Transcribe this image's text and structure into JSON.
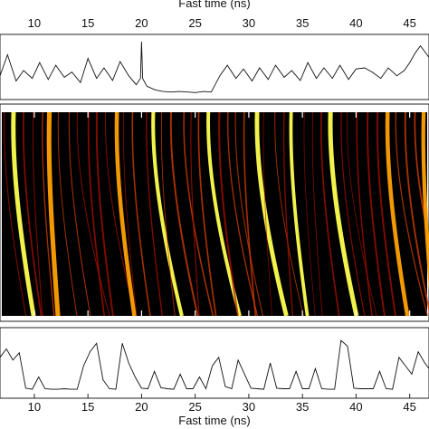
{
  "chart_data": [
    {
      "type": "line",
      "xlabel": "Fast time (ns)",
      "xticks": [
        10,
        15,
        20,
        25,
        30,
        35,
        40,
        45
      ],
      "xlim": [
        6.8,
        46.8
      ],
      "series": [
        {
          "x": [
            6.8,
            7.5,
            8.3,
            9.0,
            9.8,
            10.5,
            11.3,
            12.0,
            12.8,
            13.5,
            14.3,
            15.0,
            15.8,
            16.5,
            17.3,
            18.0,
            18.8,
            19.5,
            19.9,
            20.0,
            20.1,
            20.5,
            21.3,
            22.0,
            22.8,
            23.5,
            24.3,
            25.0,
            25.8,
            26.5,
            27.3,
            28.0,
            28.8,
            29.5,
            30.3,
            31.0,
            31.8,
            32.5,
            33.3,
            34.0,
            34.8,
            35.5,
            36.3,
            37.0,
            37.8,
            38.5,
            39.3,
            40.0,
            40.8,
            41.5,
            42.3,
            43.0,
            43.8,
            44.5,
            45.0,
            45.5,
            46.0,
            46.8
          ],
          "y": [
            0.35,
            0.75,
            0.25,
            0.45,
            0.3,
            0.6,
            0.28,
            0.55,
            0.32,
            0.42,
            0.22,
            0.68,
            0.3,
            0.5,
            0.26,
            0.62,
            0.35,
            0.18,
            0.3,
            1.0,
            0.3,
            0.15,
            0.08,
            0.05,
            0.04,
            0.05,
            0.04,
            0.03,
            0.05,
            0.04,
            0.35,
            0.55,
            0.3,
            0.48,
            0.25,
            0.5,
            0.28,
            0.55,
            0.32,
            0.45,
            0.26,
            0.6,
            0.3,
            0.5,
            0.3,
            0.55,
            0.28,
            0.48,
            0.5,
            0.42,
            0.3,
            0.5,
            0.35,
            0.45,
            0.6,
            0.78,
            0.92,
            0.7
          ]
        }
      ]
    },
    {
      "type": "heatmap",
      "xlim": [
        6.8,
        46.8
      ],
      "colorscale": [
        "#000000",
        "#5a0000",
        "#b01000",
        "#e04000",
        "#ffa000",
        "#ffff50"
      ],
      "grid": false
    },
    {
      "type": "line",
      "xlabel": "Fast time (ns)",
      "xticks": [
        10,
        15,
        20,
        25,
        30,
        35,
        40,
        45
      ],
      "xlim": [
        6.8,
        46.8
      ],
      "series": [
        {
          "x": [
            6.8,
            7.4,
            8.0,
            8.6,
            9.2,
            9.8,
            10.4,
            11.0,
            11.6,
            12.2,
            12.8,
            13.4,
            14.0,
            14.6,
            15.2,
            15.8,
            16.4,
            17.0,
            17.6,
            18.2,
            18.8,
            19.4,
            20.0,
            20.6,
            21.2,
            21.8,
            22.4,
            23.0,
            23.6,
            24.2,
            24.8,
            25.4,
            26.0,
            26.6,
            27.2,
            27.8,
            28.4,
            29.0,
            29.6,
            30.2,
            30.8,
            31.4,
            32.0,
            32.6,
            33.2,
            33.8,
            34.4,
            35.0,
            35.6,
            36.2,
            36.8,
            37.4,
            38.0,
            38.6,
            39.2,
            39.8,
            40.4,
            41.0,
            41.6,
            42.2,
            42.8,
            43.4,
            44.0,
            44.6,
            45.2,
            45.8,
            46.4,
            46.8
          ],
          "y": [
            0.6,
            0.75,
            0.55,
            0.68,
            0.05,
            0.03,
            0.25,
            0.04,
            0.03,
            0.03,
            0.04,
            0.03,
            0.03,
            0.45,
            0.7,
            0.85,
            0.2,
            0.04,
            0.03,
            0.85,
            0.5,
            0.25,
            0.05,
            0.04,
            0.35,
            0.06,
            0.04,
            0.03,
            0.3,
            0.04,
            0.04,
            0.25,
            0.04,
            0.45,
            0.6,
            0.08,
            0.04,
            0.55,
            0.3,
            0.05,
            0.04,
            0.03,
            0.5,
            0.05,
            0.04,
            0.04,
            0.35,
            0.04,
            0.04,
            0.4,
            0.04,
            0.03,
            0.03,
            0.9,
            0.8,
            0.05,
            0.04,
            0.04,
            0.04,
            0.35,
            0.04,
            0.03,
            0.6,
            0.45,
            0.3,
            0.7,
            0.5,
            0.4
          ]
        }
      ]
    }
  ]
}
